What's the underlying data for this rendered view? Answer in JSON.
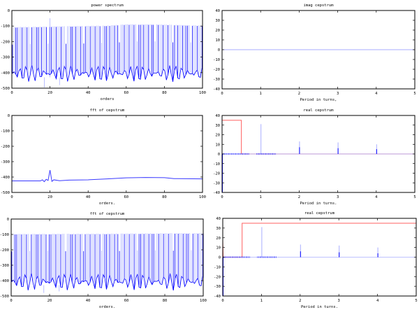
{
  "chart_data": [
    {
      "type": "line",
      "title": "power spectrum",
      "xlabel": "orders",
      "xlim": [
        0,
        100
      ],
      "ylim": [
        -500,
        0
      ],
      "xticks": [
        0,
        20,
        40,
        60,
        80,
        100
      ],
      "yticks": [
        0,
        -100,
        -200,
        -300,
        -400,
        -500
      ],
      "grid": false,
      "colors": {
        "light": "#a8aeff",
        "dark": "#0000ff"
      },
      "series": [
        {
          "kind": "spikes",
          "spacing": 0.85,
          "peak_envelope": [
            [
              0,
              -110
            ],
            [
              50,
              -100
            ],
            [
              60,
              -92
            ],
            [
              75,
              -92
            ],
            [
              100,
              -100
            ]
          ],
          "floor_range": [
            -460,
            -350
          ],
          "features": [
            [
              20,
              -50
            ],
            [
              25,
              -480
            ],
            [
              17,
              -495
            ]
          ]
        }
      ]
    },
    {
      "type": "line",
      "title": "imag cepstrum",
      "xlabel": "Period in turns,",
      "xlim": [
        0,
        5
      ],
      "ylim": [
        -40,
        40
      ],
      "xticks": [
        0,
        1,
        2,
        3,
        4,
        5
      ],
      "yticks": [
        40,
        30,
        20,
        10,
        0,
        -10,
        -20,
        -30,
        -40
      ],
      "grid": false,
      "series": [
        {
          "color": "#a8aeff",
          "points": [
            [
              0,
              0
            ],
            [
              5,
              0
            ]
          ]
        }
      ]
    },
    {
      "type": "line",
      "title": "fft of cepstrum",
      "xlabel": "orders.",
      "xlim": [
        0,
        100
      ],
      "ylim": [
        -500,
        0
      ],
      "xticks": [
        0,
        20,
        40,
        60,
        80,
        100
      ],
      "yticks": [
        0,
        -100,
        -200,
        -300,
        -400,
        -500
      ],
      "grid": false,
      "series": [
        {
          "color": "#3a3aff",
          "points": [
            [
              0,
              -425
            ],
            [
              15,
              -425
            ],
            [
              16,
              -418
            ],
            [
              17,
              -430
            ],
            [
              18,
              -415
            ],
            [
              19,
              -422
            ],
            [
              20,
              -355
            ],
            [
              21,
              -428
            ],
            [
              22,
              -418
            ],
            [
              25,
              -424
            ],
            [
              30,
              -420
            ],
            [
              40,
              -418
            ],
            [
              50,
              -412
            ],
            [
              60,
              -405
            ],
            [
              70,
              -403
            ],
            [
              80,
              -404
            ],
            [
              85,
              -410
            ],
            [
              100,
              -412
            ]
          ]
        }
      ]
    },
    {
      "type": "line",
      "title": "real cepstrum",
      "xlabel": "Period in turns.",
      "xlim": [
        0,
        5
      ],
      "ylim": [
        -40,
        40
      ],
      "xticks": [
        0,
        1,
        2,
        3,
        4,
        5
      ],
      "yticks": [
        40,
        30,
        20,
        10,
        0,
        -10,
        -20,
        -30,
        -40
      ],
      "grid": false,
      "series": [
        {
          "color": "#ff6060",
          "points": [
            [
              0,
              35
            ],
            [
              0.5,
              35
            ],
            [
              0.5,
              0
            ],
            [
              5,
              0
            ]
          ]
        },
        {
          "color": "#a8aeff",
          "spikes": [
            [
              0,
              -40
            ],
            [
              1,
              31
            ],
            [
              2,
              13
            ],
            [
              3,
              12
            ],
            [
              4,
              10
            ]
          ]
        },
        {
          "color": "#0000ff",
          "spikes": [
            [
              0,
              -40
            ],
            [
              2,
              7
            ],
            [
              3,
              6
            ],
            [
              4,
              5
            ]
          ]
        }
      ]
    },
    {
      "type": "line",
      "title": "fft of cepstrum",
      "xlabel": "orders.",
      "xlim": [
        0,
        100
      ],
      "ylim": [
        -500,
        0
      ],
      "xticks": [
        0,
        20,
        40,
        60,
        80,
        100
      ],
      "yticks": [
        0,
        -100,
        -200,
        -300,
        -400,
        -500
      ],
      "grid": false,
      "colors": {
        "light": "#a8aeff",
        "dark": "#0000ff"
      },
      "series": [
        {
          "kind": "spikes",
          "spacing": 0.85,
          "peak_envelope": [
            [
              0,
              -100
            ],
            [
              50,
              -98
            ],
            [
              85,
              -95
            ],
            [
              100,
              -95
            ]
          ],
          "floor_range": [
            -465,
            -350
          ],
          "features": [
            [
              17,
              -480
            ],
            [
              25,
              -470
            ]
          ]
        }
      ]
    },
    {
      "type": "line",
      "title": "real cepstrum",
      "xlabel": "Period in turns.",
      "xlim": [
        0,
        5
      ],
      "ylim": [
        -40,
        40
      ],
      "xticks": [
        0,
        1,
        2,
        3,
        4,
        5
      ],
      "yticks": [
        40,
        30,
        20,
        10,
        0,
        -10,
        -20,
        -30,
        -40
      ],
      "grid": false,
      "series": [
        {
          "color": "#ff6060",
          "points": [
            [
              0,
              18
            ],
            [
              0.01,
              0
            ],
            [
              0.5,
              0
            ],
            [
              0.5,
              35
            ],
            [
              5,
              35
            ]
          ]
        },
        {
          "color": "#a8aeff",
          "spikes": [
            [
              0,
              -40
            ],
            [
              1,
              31
            ],
            [
              2,
              13
            ],
            [
              3,
              12
            ],
            [
              4,
              10
            ]
          ]
        },
        {
          "color": "#0000ff",
          "spikes": [
            [
              0,
              -40
            ],
            [
              2,
              6
            ],
            [
              3,
              5
            ],
            [
              4,
              4
            ]
          ]
        }
      ]
    }
  ]
}
